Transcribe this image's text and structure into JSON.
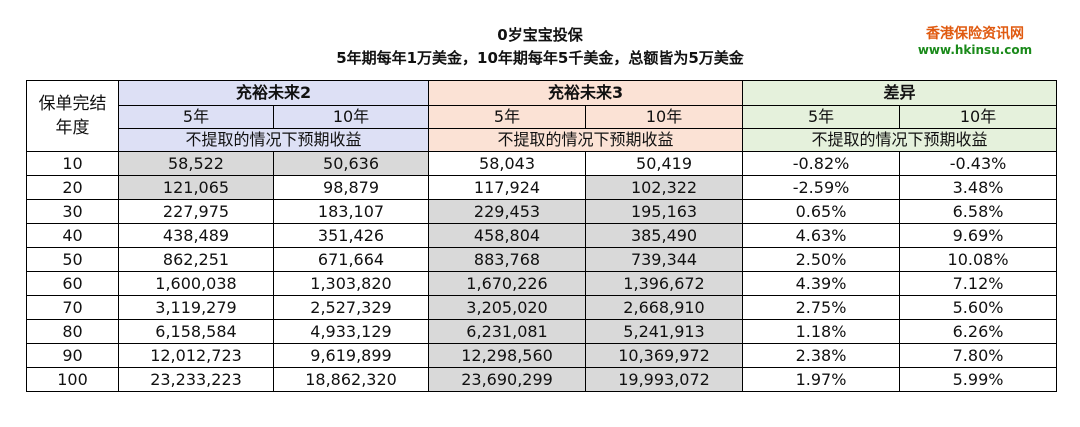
{
  "title_line1": "0岁宝宝投保",
  "title_line2": "5年期每年1万美金，10年期每年5千美金，总额皆为5万美金",
  "watermark": {
    "name": "香港保险资讯网",
    "url": "www.hkinsu.com"
  },
  "colors": {
    "plan_a_header": "#dde0f5",
    "plan_b_header": "#fbe2d5",
    "diff_header": "#e5f1dc",
    "shaded_cell": "#d9d9d9",
    "watermark_name": "#e05a10",
    "watermark_url": "#1a8a1a"
  },
  "table": {
    "year_header": "保单完结年度",
    "year_header_line1": "保单完结",
    "year_header_line2": "年度",
    "plan_a": "充裕未来2",
    "plan_b": "充裕未来3",
    "diff": "差异",
    "sub_5": "5年",
    "sub_10": "10年",
    "note": "不提取的情况下预期收益",
    "rows": [
      {
        "year": "10",
        "a5": "58,522",
        "a10": "50,636",
        "b5": "58,043",
        "b10": "50,419",
        "d5": "-0.82%",
        "d10": "-0.43%",
        "shade": "a"
      },
      {
        "year": "20",
        "a5": "121,065",
        "a10": "98,879",
        "b5": "117,924",
        "b10": "102,322",
        "d5": "-2.59%",
        "d10": "3.48%",
        "shade": "a5b10"
      },
      {
        "year": "30",
        "a5": "227,975",
        "a10": "183,107",
        "b5": "229,453",
        "b10": "195,163",
        "d5": "0.65%",
        "d10": "6.58%",
        "shade": "b"
      },
      {
        "year": "40",
        "a5": "438,489",
        "a10": "351,426",
        "b5": "458,804",
        "b10": "385,490",
        "d5": "4.63%",
        "d10": "9.69%",
        "shade": "b"
      },
      {
        "year": "50",
        "a5": "862,251",
        "a10": "671,664",
        "b5": "883,768",
        "b10": "739,344",
        "d5": "2.50%",
        "d10": "10.08%",
        "shade": "b"
      },
      {
        "year": "60",
        "a5": "1,600,038",
        "a10": "1,303,820",
        "b5": "1,670,226",
        "b10": "1,396,672",
        "d5": "4.39%",
        "d10": "7.12%",
        "shade": "b"
      },
      {
        "year": "70",
        "a5": "3,119,279",
        "a10": "2,527,329",
        "b5": "3,205,020",
        "b10": "2,668,910",
        "d5": "2.75%",
        "d10": "5.60%",
        "shade": "b"
      },
      {
        "year": "80",
        "a5": "6,158,584",
        "a10": "4,933,129",
        "b5": "6,231,081",
        "b10": "5,241,913",
        "d5": "1.18%",
        "d10": "6.26%",
        "shade": "b"
      },
      {
        "year": "90",
        "a5": "12,012,723",
        "a10": "9,619,899",
        "b5": "12,298,560",
        "b10": "10,369,972",
        "d5": "2.38%",
        "d10": "7.80%",
        "shade": "b"
      },
      {
        "year": "100",
        "a5": "23,233,223",
        "a10": "18,862,320",
        "b5": "23,690,299",
        "b10": "19,993,072",
        "d5": "1.97%",
        "d10": "5.99%",
        "shade": "b"
      }
    ]
  }
}
